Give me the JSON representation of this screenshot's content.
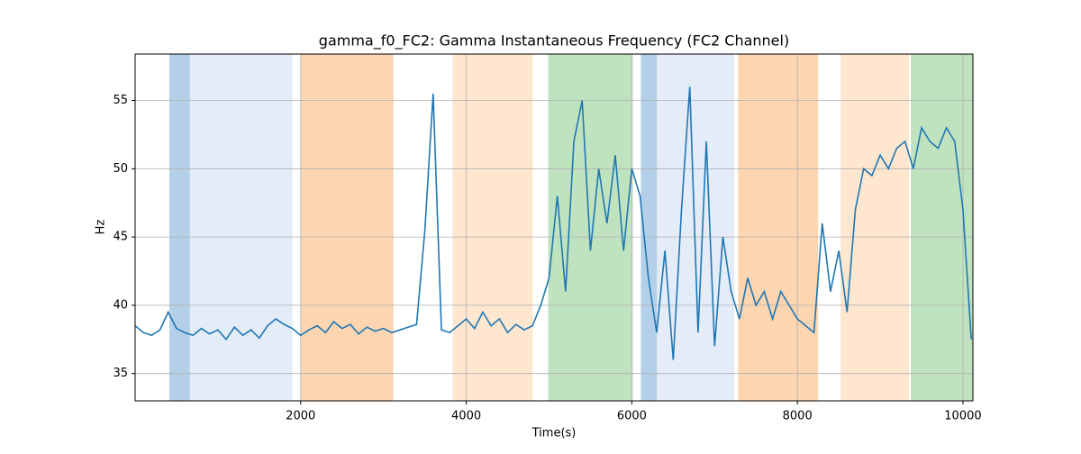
{
  "chart_data": {
    "type": "line",
    "title": "gamma_f0_FC2: Gamma Instantaneous Frequency (FC2 Channel)",
    "xlabel": "Time(s)",
    "ylabel": "Hz",
    "x": [
      0,
      100,
      200,
      300,
      400,
      500,
      600,
      700,
      800,
      900,
      1000,
      1100,
      1200,
      1300,
      1400,
      1500,
      1600,
      1700,
      1800,
      1900,
      2000,
      2100,
      2200,
      2300,
      2400,
      2500,
      2600,
      2700,
      2800,
      2900,
      3000,
      3100,
      3200,
      3300,
      3400,
      3500,
      3600,
      3700,
      3800,
      3900,
      4000,
      4100,
      4200,
      4300,
      4400,
      4500,
      4600,
      4700,
      4800,
      4900,
      5000,
      5100,
      5200,
      5300,
      5400,
      5500,
      5600,
      5700,
      5800,
      5900,
      6000,
      6100,
      6200,
      6300,
      6400,
      6500,
      6600,
      6700,
      6800,
      6900,
      7000,
      7100,
      7200,
      7300,
      7400,
      7500,
      7600,
      7700,
      7800,
      7900,
      8000,
      8100,
      8200,
      8300,
      8400,
      8500,
      8600,
      8700,
      8800,
      8900,
      9000,
      9100,
      9200,
      9300,
      9400,
      9500,
      9600,
      9700,
      9800,
      9900,
      10000,
      10100
    ],
    "series": [
      {
        "name": "gamma_f0_FC2",
        "color": "#1f77b4",
        "values": [
          38.5,
          38,
          37.8,
          38.2,
          39.5,
          38.3,
          38,
          37.8,
          38.3,
          37.9,
          38.2,
          37.5,
          38.4,
          37.8,
          38.2,
          37.6,
          38.5,
          39,
          38.6,
          38.3,
          37.8,
          38.2,
          38.5,
          38,
          38.8,
          38.3,
          38.6,
          37.9,
          38.4,
          38.1,
          38.3,
          38,
          38.2,
          38.4,
          38.6,
          45.5,
          55.5,
          38.2,
          38,
          38.5,
          39,
          38.3,
          39.5,
          38.5,
          39,
          38,
          38.6,
          38.2,
          38.5,
          40,
          42,
          48,
          41,
          52,
          55,
          44,
          50,
          46,
          51,
          44,
          50,
          48,
          42,
          38,
          44,
          36,
          47,
          56,
          38,
          52,
          37,
          45,
          41,
          39,
          42,
          40,
          41,
          39,
          41,
          40,
          39,
          38.5,
          38,
          46,
          41,
          44,
          39.5,
          47,
          50,
          49.5,
          51,
          50,
          51.5,
          52,
          50,
          53,
          52,
          51.5,
          53,
          52,
          47,
          37.5
        ]
      }
    ],
    "spans": [
      {
        "x0": 413,
        "x1": 663,
        "color": "#b4d0e8"
      },
      {
        "x0": 663,
        "x1": 1902,
        "color": "#e3ecf7"
      },
      {
        "x0": 2000,
        "x1": 3120,
        "color": "#fdd5b0"
      },
      {
        "x0": 3837,
        "x1": 4804,
        "color": "#fee6cf"
      },
      {
        "x0": 4989,
        "x1": 6011,
        "color": "#c0e3bf"
      },
      {
        "x0": 6109,
        "x1": 6304,
        "color": "#b4d0e8"
      },
      {
        "x0": 6304,
        "x1": 7239,
        "color": "#e3ecf7"
      },
      {
        "x0": 7283,
        "x1": 8250,
        "color": "#fdd5b0"
      },
      {
        "x0": 8522,
        "x1": 9348,
        "color": "#fee6cf"
      },
      {
        "x0": 9370,
        "x1": 10120,
        "color": "#c0e3bf"
      }
    ],
    "xlim": [
      0,
      10120
    ],
    "ylim": [
      33.0,
      58.4
    ],
    "xticks": [
      2000,
      4000,
      6000,
      8000,
      10000
    ],
    "yticks": [
      35,
      40,
      45,
      50,
      55
    ],
    "grid": true
  }
}
